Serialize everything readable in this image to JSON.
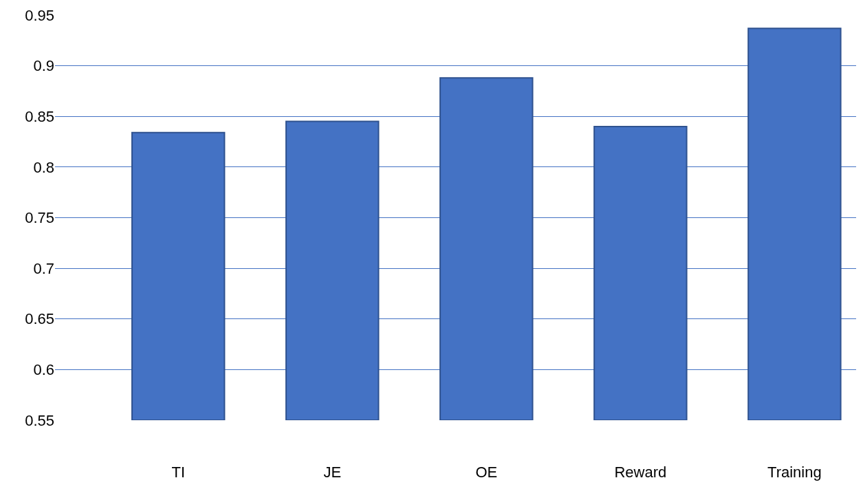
{
  "chart_data": {
    "type": "bar",
    "categories": [
      "TI",
      "JE",
      "OE",
      "Reward",
      "Training"
    ],
    "values": [
      0.834,
      0.845,
      0.888,
      0.84,
      0.937
    ],
    "color": "#4472c4",
    "ylim": [
      0.55,
      0.95
    ],
    "yticks": [
      0.55,
      0.6,
      0.65,
      0.7,
      0.75,
      0.8,
      0.85,
      0.9,
      0.95
    ],
    "grid": "y"
  }
}
